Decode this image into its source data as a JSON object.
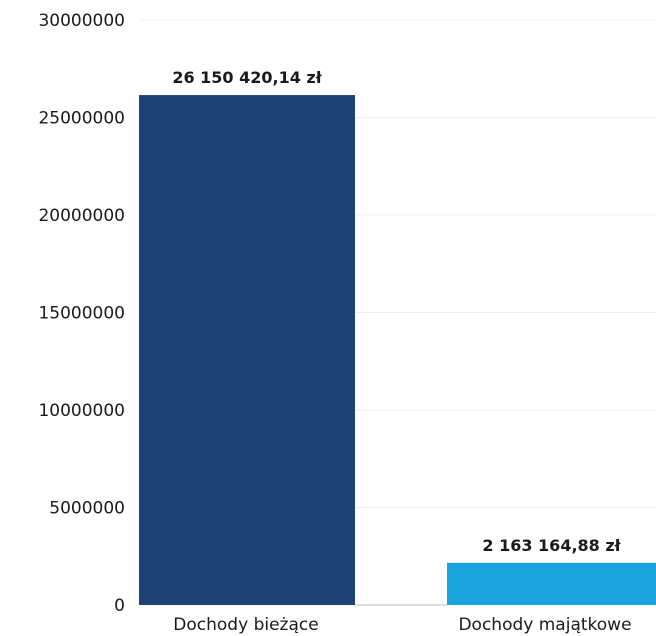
{
  "chart_data": {
    "type": "bar",
    "categories": [
      "Dochody bieżące",
      "Dochody majątkowe"
    ],
    "values": [
      26150420.14,
      2163164.88
    ],
    "data_labels": [
      "26 150 420,14 zł",
      "2 163 164,88 zł"
    ],
    "y_ticks": [
      "0",
      "5000000",
      "10000000",
      "15000000",
      "20000000",
      "25000000",
      "30000000"
    ],
    "ylim": [
      0,
      30000000
    ],
    "grid": true,
    "colors": [
      "#1f4275",
      "#1aa3dc"
    ]
  }
}
